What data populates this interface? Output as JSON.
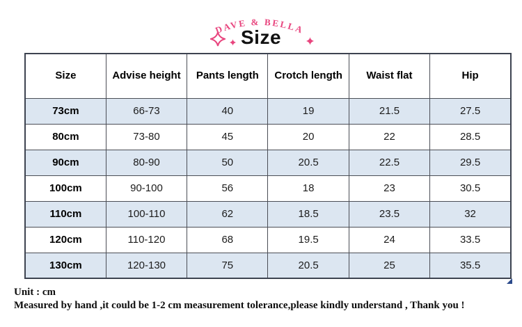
{
  "brand": {
    "name": "DAVE & BELLA",
    "title": "Size"
  },
  "table": {
    "headers": [
      "Size",
      "Advise height",
      "Pants length",
      "Crotch length",
      "Waist flat",
      "Hip"
    ],
    "rows": [
      [
        "73cm",
        "66-73",
        "40",
        "19",
        "21.5",
        "27.5"
      ],
      [
        "80cm",
        "73-80",
        "45",
        "20",
        "22",
        "28.5"
      ],
      [
        "90cm",
        "80-90",
        "50",
        "20.5",
        "22.5",
        "29.5"
      ],
      [
        "100cm",
        "90-100",
        "56",
        "18",
        "23",
        "30.5"
      ],
      [
        "110cm",
        "100-110",
        "62",
        "18.5",
        "23.5",
        "32"
      ],
      [
        "120cm",
        "110-120",
        "68",
        "19.5",
        "24",
        "33.5"
      ],
      [
        "130cm",
        "120-130",
        "75",
        "20.5",
        "25",
        "35.5"
      ]
    ]
  },
  "footer": {
    "unit_line": "Unit : cm",
    "note_line": "Measured by hand ,it could be 1-2 cm measurement tolerance,please kindly understand , Thank you !"
  },
  "colors": {
    "brand_pink": "#e8457e",
    "alt_row_blue": "#dce6f1",
    "border_dark": "#3d4350",
    "fill_handle_blue": "#2b4a8b"
  }
}
